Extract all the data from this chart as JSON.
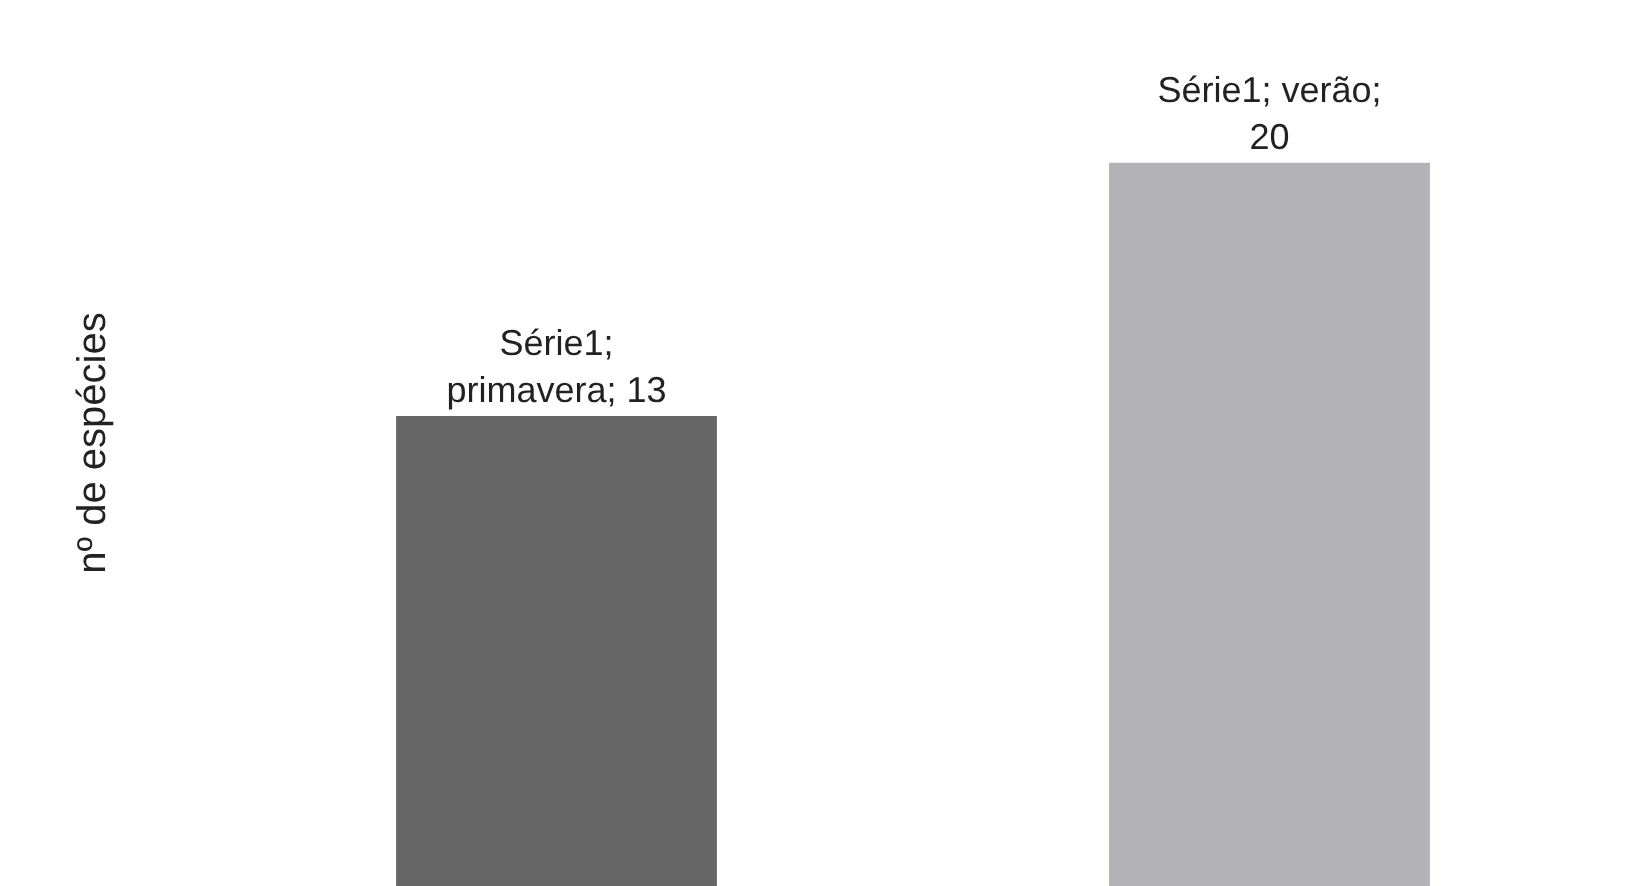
{
  "chart_data": {
    "type": "bar",
    "ylabel": "nº de espécies",
    "categories": [
      null,
      null
    ],
    "values": [
      13,
      20
    ],
    "colors": [
      "#666666",
      "#b3b3b7"
    ],
    "value_labels": [
      "Série1;\nprimavera; 13",
      "Série1; verão;\n20"
    ],
    "ylim": [
      0,
      24.5
    ],
    "tick_labels": false
  }
}
